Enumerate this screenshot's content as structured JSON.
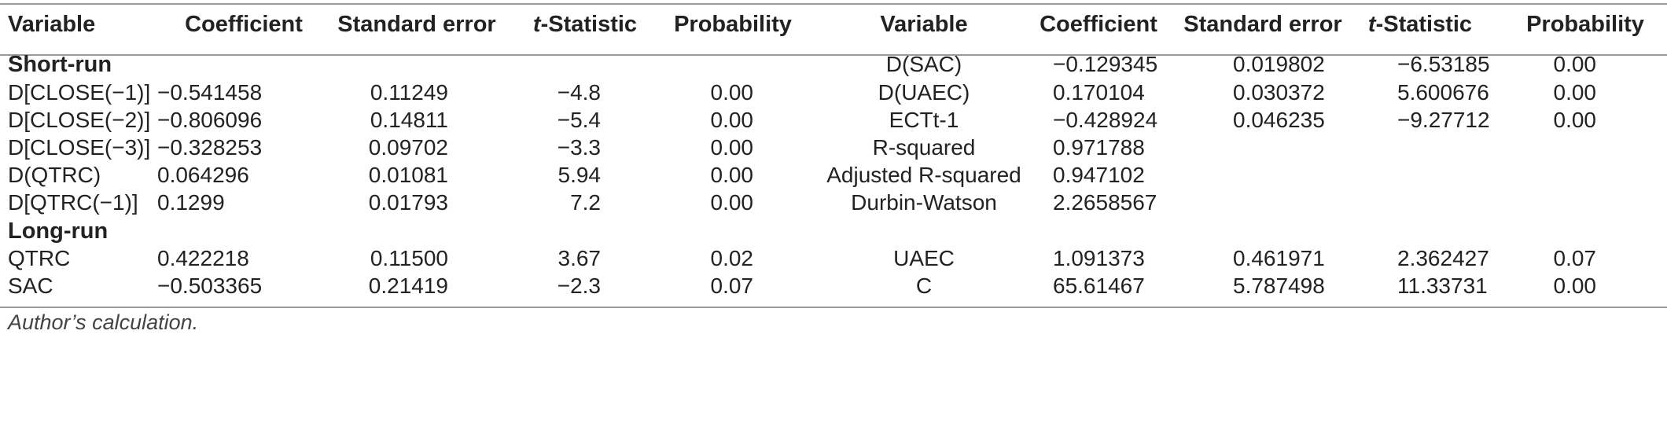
{
  "table": {
    "headers": [
      "Variable",
      "Coefficient",
      "Standard error",
      "t-Statistic",
      "Probability",
      "Variable",
      "Coefficient",
      "Standard error",
      "t-Statistic",
      "Probability"
    ],
    "sections": {
      "short_run": "Short-run",
      "long_run": "Long-run"
    },
    "left_rows": [
      [
        "D[CLOSE(−1)]",
        "−0.541458",
        "0.11249",
        "−4.8",
        "0.00"
      ],
      [
        "D[CLOSE(−2)]",
        "−0.806096",
        "0.14811",
        "−5.4",
        "0.00"
      ],
      [
        "D[CLOSE(−3)]",
        "−0.328253",
        "0.09702",
        "−3.3",
        "0.00"
      ],
      [
        "D(QTRC)",
        "0.064296",
        "0.01081",
        "5.94",
        "0.00"
      ],
      [
        "D[QTRC(−1)]",
        "0.1299",
        "0.01793",
        "7.2",
        "0.00"
      ],
      [
        "QTRC",
        "0.422218",
        "0.11500",
        "3.67",
        "0.02"
      ],
      [
        "SAC",
        "−0.503365",
        "0.21419",
        "−2.3",
        "0.07"
      ]
    ],
    "right_rows": [
      [
        "D(SAC)",
        "−0.129345",
        "0.019802",
        "−6.53185",
        "0.00"
      ],
      [
        "D(UAEC)",
        "0.170104",
        "0.030372",
        "5.600676",
        "0.00"
      ],
      [
        "ECTt-1",
        "−0.428924",
        "0.046235",
        "−9.27712",
        "0.00"
      ],
      [
        "R-squared",
        "0.971788",
        "",
        "",
        ""
      ],
      [
        "Adjusted R-squared",
        "0.947102",
        "",
        "",
        ""
      ],
      [
        "Durbin-Watson",
        "2.2658567",
        "",
        "",
        ""
      ],
      [
        "UAEC",
        "1.091373",
        "0.461971",
        "2.362427",
        "0.07"
      ],
      [
        "C",
        "65.61467",
        "5.787498",
        "11.33731",
        "0.00"
      ]
    ]
  },
  "footnote": "Author’s calculation."
}
